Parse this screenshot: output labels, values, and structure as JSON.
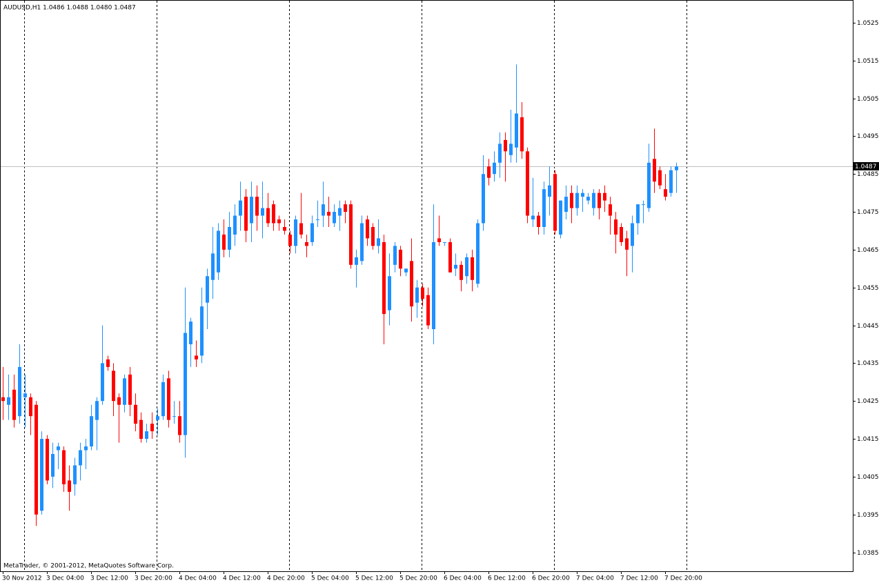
{
  "chart_data": {
    "type": "candlestick",
    "title": "AUDUSD,H1  1.0486 1.0488 1.0480 1.0487",
    "footer": "MetaTrader, © 2001-2012, MetaQuotes Software Corp.",
    "up_color": "#1e90ff",
    "down_color": "#ff0000",
    "categories": [
      "30 Nov 2012",
      null,
      null,
      null,
      null,
      null,
      null,
      null,
      "3 Dec 04:00",
      null,
      null,
      null,
      null,
      null,
      null,
      null,
      "3 Dec 12:00",
      null,
      null,
      null,
      null,
      null,
      null,
      null,
      "3 Dec 20:00",
      null,
      null,
      null,
      null,
      null,
      null,
      null,
      "4 Dec 04:00",
      null,
      null,
      null,
      null,
      null,
      null,
      null,
      "4 Dec 12:00",
      null,
      null,
      null,
      null,
      null,
      null,
      null,
      "4 Dec 20:00",
      null,
      null,
      null,
      null,
      null,
      null,
      null,
      "5 Dec 04:00",
      null,
      null,
      null,
      null,
      null,
      null,
      null,
      "5 Dec 12:00",
      null,
      null,
      null,
      null,
      null,
      null,
      null,
      "5 Dec 20:00",
      null,
      null,
      null,
      null,
      null,
      null,
      null,
      "6 Dec 04:00",
      null,
      null,
      null,
      null,
      null,
      null,
      null,
      "6 Dec 12:00",
      null,
      null,
      null,
      null,
      null,
      null,
      null,
      "6 Dec 20:00",
      null,
      null,
      null,
      null,
      null,
      null,
      null,
      "7 Dec 04:00",
      null,
      null,
      null,
      null,
      null,
      null,
      null,
      "7 Dec 12:00",
      null,
      null,
      null,
      null,
      null,
      null,
      null,
      "7 Dec 20:00",
      null,
      null
    ],
    "open": [
      1.0426,
      1.0424,
      1.0428,
      1.0421,
      1.0426,
      1.0426,
      1.0424,
      1.0396,
      1.0415,
      1.0405,
      1.0412,
      1.0412,
      1.0404,
      1.0403,
      1.0408,
      1.0412,
      1.0413,
      1.042,
      1.0425,
      1.0436,
      1.0433,
      1.0426,
      1.0424,
      1.0432,
      1.0424,
      1.042,
      1.0415,
      1.0419,
      1.042,
      1.0421,
      1.0431,
      1.0421,
      1.0421,
      1.0416,
      1.044,
      1.0437,
      1.0437,
      1.0451,
      1.0457,
      1.0459,
      1.0469,
      1.0465,
      1.0469,
      1.0474,
      1.0479,
      1.0472,
      1.0479,
      1.0474,
      1.0476,
      1.0477,
      1.0473,
      1.0471,
      1.0469,
      1.0466,
      1.0472,
      1.0467,
      1.0467,
      1.0473,
      1.0474,
      1.0475,
      1.0472,
      1.0474,
      1.0477,
      1.0477,
      1.0461,
      1.0462,
      1.0473,
      1.0471,
      1.0466,
      1.0467,
      1.0449,
      1.0461,
      1.0465,
      1.0459,
      1.0462,
      1.0451,
      1.0455,
      1.0453,
      1.0444,
      1.0468,
      1.0467,
      1.0467,
      1.046,
      1.0461,
      1.0458,
      1.0463,
      1.0456,
      1.0472,
      1.0487,
      1.0485,
      1.0488,
      1.0494,
      1.049,
      1.0492,
      1.05,
      1.0491,
      1.0473,
      1.0474,
      1.0471,
      1.0479,
      1.0485,
      1.0469,
      1.0475,
      1.048,
      1.0476,
      1.0479,
      1.0478,
      1.0476,
      1.048,
      1.048,
      1.0477,
      1.0473,
      1.0471,
      1.0468,
      1.0466,
      1.0472,
      1.0477,
      1.0476,
      1.0489,
      1.0486,
      1.0481,
      1.048,
      1.0486
    ],
    "high": [
      1.0434,
      1.0432,
      1.0432,
      1.044,
      1.0432,
      1.0427,
      1.0425,
      1.0417,
      1.0416,
      1.0414,
      1.0414,
      1.0413,
      1.0408,
      1.041,
      1.0414,
      1.0415,
      1.0424,
      1.0426,
      1.0445,
      1.0437,
      1.0435,
      1.0427,
      1.0432,
      1.0434,
      1.0427,
      1.0422,
      1.0419,
      1.0422,
      1.0423,
      1.0432,
      1.0433,
      1.0425,
      1.0425,
      1.0455,
      1.0447,
      1.0441,
      1.0455,
      1.046,
      1.0471,
      1.0472,
      1.0473,
      1.0475,
      1.0477,
      1.0483,
      1.0481,
      1.0483,
      1.0482,
      1.0483,
      1.048,
      1.0478,
      1.0474,
      1.0473,
      1.047,
      1.0474,
      1.048,
      1.0469,
      1.0474,
      1.0478,
      1.0483,
      1.0479,
      1.0477,
      1.0478,
      1.0478,
      1.0478,
      1.0465,
      1.0474,
      1.0474,
      1.0472,
      1.0473,
      1.0469,
      1.0464,
      1.0467,
      1.0466,
      1.046,
      1.0468,
      1.0457,
      1.0456,
      1.0455,
      1.0477,
      1.0474,
      1.0467,
      1.0468,
      1.0464,
      1.0462,
      1.0464,
      1.0465,
      1.0473,
      1.049,
      1.0489,
      1.0491,
      1.0496,
      1.0496,
      1.0502,
      1.0514,
      1.0504,
      1.0492,
      1.0484,
      1.0475,
      1.0483,
      1.0487,
      1.0486,
      1.0478,
      1.0482,
      1.0482,
      1.0482,
      1.0481,
      1.048,
      1.0481,
      1.0481,
      1.0482,
      1.0479,
      1.0475,
      1.0472,
      1.047,
      1.0474,
      1.0477,
      1.0478,
      1.0493,
      1.0497,
      1.0487,
      1.0485,
      1.0487,
      1.0488
    ],
    "low": [
      1.042,
      1.042,
      1.0418,
      1.0419,
      1.0418,
      1.0416,
      1.0392,
      1.0395,
      1.0403,
      1.0402,
      1.0407,
      1.0401,
      1.0396,
      1.04,
      1.0404,
      1.0407,
      1.0412,
      1.0412,
      1.0424,
      1.0433,
      1.0421,
      1.0414,
      1.0422,
      1.0421,
      1.0417,
      1.0414,
      1.0414,
      1.0415,
      1.0416,
      1.042,
      1.0418,
      1.0419,
      1.0414,
      1.041,
      1.0434,
      1.0434,
      1.0435,
      1.0444,
      1.0452,
      1.0457,
      1.0463,
      1.0463,
      1.0466,
      1.047,
      1.0467,
      1.0467,
      1.047,
      1.0468,
      1.0471,
      1.047,
      1.047,
      1.0469,
      1.0464,
      1.0464,
      1.0468,
      1.0463,
      1.0466,
      1.0471,
      1.0471,
      1.0471,
      1.0471,
      1.047,
      1.0472,
      1.046,
      1.0455,
      1.0461,
      1.0466,
      1.0465,
      1.0464,
      1.044,
      1.0445,
      1.0459,
      1.0458,
      1.0458,
      1.0446,
      1.0447,
      1.045,
      1.0444,
      1.044,
      1.0466,
      1.0466,
      1.0459,
      1.0458,
      1.0454,
      1.0456,
      1.0454,
      1.0455,
      1.047,
      1.0482,
      1.0483,
      1.0484,
      1.0483,
      1.0488,
      1.0488,
      1.0489,
      1.0472,
      1.0471,
      1.0469,
      1.0469,
      1.0474,
      1.0469,
      1.0468,
      1.0473,
      1.0472,
      1.0474,
      1.0475,
      1.0477,
      1.0474,
      1.0473,
      1.0475,
      1.0469,
      1.0464,
      1.0466,
      1.0458,
      1.0459,
      1.0469,
      1.0472,
      1.0475,
      1.048,
      1.0481,
      1.0478,
      1.0479,
      1.048
    ],
    "close": [
      1.0425,
      1.0426,
      1.042,
      1.0434,
      1.0427,
      1.0421,
      1.0395,
      1.0415,
      1.0404,
      1.0411,
      1.0413,
      1.0403,
      1.0401,
      1.0408,
      1.0412,
      1.0413,
      1.0421,
      1.0425,
      1.0435,
      1.0434,
      1.0425,
      1.0424,
      1.0431,
      1.0424,
      1.0419,
      1.0415,
      1.0417,
      1.0417,
      1.0421,
      1.043,
      1.042,
      1.0421,
      1.0416,
      1.0443,
      1.0446,
      1.0436,
      1.045,
      1.0458,
      1.0464,
      1.047,
      1.0465,
      1.0471,
      1.0474,
      1.0478,
      1.047,
      1.0479,
      1.0474,
      1.0476,
      1.0472,
      1.0472,
      1.0472,
      1.047,
      1.0466,
      1.0473,
      1.0469,
      1.0466,
      1.0472,
      1.0473,
      1.0477,
      1.0474,
      1.0475,
      1.0476,
      1.0475,
      1.0461,
      1.0463,
      1.0472,
      1.0468,
      1.0466,
      1.0468,
      1.0448,
      1.0458,
      1.0466,
      1.046,
      1.046,
      1.045,
      1.0455,
      1.0452,
      1.0445,
      1.0467,
      1.0467,
      1.0467,
      1.0459,
      1.0461,
      1.0457,
      1.0463,
      1.0457,
      1.0472,
      1.0485,
      1.0484,
      1.0488,
      1.0493,
      1.0491,
      1.0493,
      1.0501,
      1.0491,
      1.0474,
      1.0474,
      1.0471,
      1.0481,
      1.0482,
      1.047,
      1.0478,
      1.0479,
      1.0476,
      1.048,
      1.048,
      1.0479,
      1.048,
      1.0476,
      1.0478,
      1.0474,
      1.0469,
      1.0467,
      1.0465,
      1.0472,
      1.0477,
      1.0477,
      1.0488,
      1.0483,
      1.0482,
      1.0479,
      1.0486,
      1.0487
    ],
    "ylim": [
      1.038,
      1.0531
    ],
    "yticks": [
      1.0385,
      1.0395,
      1.0405,
      1.0415,
      1.0425,
      1.0435,
      1.0445,
      1.0455,
      1.0465,
      1.0475,
      1.0485,
      1.0495,
      1.0505,
      1.0515,
      1.0525
    ],
    "current_price": {
      "value": 1.0487,
      "label": "1.0487"
    }
  }
}
